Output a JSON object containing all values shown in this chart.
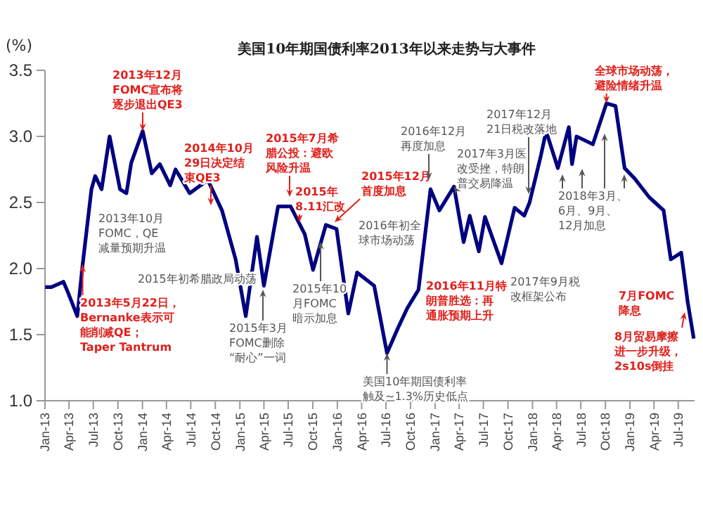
{
  "chart_data": {
    "type": "line",
    "title": "美国10年期国债利率2013年以来走势与大事件",
    "ylabel": "(%)",
    "x": [
      "2013-01-02",
      "2013-01-25",
      "2013-03-11",
      "2013-03-28",
      "2013-05-02",
      "2013-05-22",
      "2013-06-24",
      "2013-07-08",
      "2013-08-01",
      "2013-08-31",
      "2013-10-09",
      "2013-11-02",
      "2013-11-20",
      "2014-01-02",
      "2014-02-05",
      "2014-03-07",
      "2014-04-15",
      "2014-05-05",
      "2014-06-27",
      "2014-09-03",
      "2014-10-26",
      "2014-12-16",
      "2015-01-23",
      "2015-03-06",
      "2015-04-01",
      "2015-05-24",
      "2015-07-10",
      "2015-09-01",
      "2015-10-02",
      "2015-11-19",
      "2015-12-29",
      "2016-02-11",
      "2016-03-15",
      "2016-05-18",
      "2016-07-05",
      "2016-08-15",
      "2016-09-19",
      "2016-10-31",
      "2016-12-15",
      "2017-01-17",
      "2017-03-13",
      "2017-04-18",
      "2017-05-11",
      "2017-06-14",
      "2017-07-07",
      "2017-09-07",
      "2017-10-26",
      "2017-12-01",
      "2017-12-21",
      "2018-02-02",
      "2018-02-21",
      "2018-04-06",
      "2018-05-17",
      "2018-05-29",
      "2018-06-15",
      "2018-08-15",
      "2018-10-05",
      "2018-11-08",
      "2018-12-12",
      "2019-01-19",
      "2019-03-14",
      "2019-05-07",
      "2019-06-03",
      "2019-07-12",
      "2019-08-05",
      "2019-08-28"
    ],
    "series": [
      {
        "color": "#000080",
        "values": [
          1.86,
          1.86,
          1.9,
          1.82,
          1.64,
          2.03,
          2.6,
          2.7,
          2.6,
          3.0,
          2.6,
          2.57,
          2.8,
          3.04,
          2.72,
          2.79,
          2.63,
          2.75,
          2.57,
          2.67,
          2.44,
          2.07,
          1.64,
          2.24,
          1.87,
          2.47,
          2.47,
          2.26,
          1.99,
          2.33,
          2.3,
          1.66,
          1.97,
          1.87,
          1.36,
          1.55,
          1.7,
          1.84,
          2.6,
          2.44,
          2.62,
          2.2,
          2.4,
          2.13,
          2.39,
          2.04,
          2.46,
          2.4,
          2.5,
          2.86,
          3.04,
          2.76,
          3.07,
          2.79,
          3.0,
          2.94,
          3.25,
          3.23,
          2.76,
          2.68,
          2.54,
          2.44,
          2.07,
          2.12,
          1.75,
          1.47
        ]
      }
    ],
    "xlim": [
      "2013-01-01",
      "2019-08-31"
    ],
    "xticks": [
      {
        "value": "2013-01-01",
        "label": "Jan-13"
      },
      {
        "value": "2013-04-01",
        "label": "Apr-13"
      },
      {
        "value": "2013-07-01",
        "label": "Jul-13"
      },
      {
        "value": "2013-10-01",
        "label": "Oct-13"
      },
      {
        "value": "2014-01-01",
        "label": "Jan-14"
      },
      {
        "value": "2014-04-01",
        "label": "Apr-14"
      },
      {
        "value": "2014-07-01",
        "label": "Jul-14"
      },
      {
        "value": "2014-10-01",
        "label": "Oct-14"
      },
      {
        "value": "2015-01-01",
        "label": "Jan-15"
      },
      {
        "value": "2015-04-01",
        "label": "Apr-15"
      },
      {
        "value": "2015-07-01",
        "label": "Jul-15"
      },
      {
        "value": "2015-10-01",
        "label": "Oct-15"
      },
      {
        "value": "2016-01-01",
        "label": "Jan-16"
      },
      {
        "value": "2016-04-01",
        "label": "Apr-16"
      },
      {
        "value": "2016-07-01",
        "label": "Jul-16"
      },
      {
        "value": "2016-10-01",
        "label": "Oct-16"
      },
      {
        "value": "2017-01-01",
        "label": "Jan-17"
      },
      {
        "value": "2017-04-01",
        "label": "Apr-17"
      },
      {
        "value": "2017-07-01",
        "label": "Jul-17"
      },
      {
        "value": "2017-10-01",
        "label": "Oct-17"
      },
      {
        "value": "2018-01-01",
        "label": "Jan-18"
      },
      {
        "value": "2018-04-01",
        "label": "Apr-18"
      },
      {
        "value": "2018-07-01",
        "label": "Jul-18"
      },
      {
        "value": "2018-10-01",
        "label": "Oct-18"
      },
      {
        "value": "2019-01-01",
        "label": "Jan-19"
      },
      {
        "value": "2019-04-01",
        "label": "Apr-19"
      },
      {
        "value": "2019-07-01",
        "label": "Jul-19"
      }
    ],
    "ylim": [
      1.0,
      3.5
    ],
    "yticks": [
      {
        "value": 1.0,
        "label": "1.0"
      },
      {
        "value": 1.5,
        "label": "1.5"
      },
      {
        "value": 2.0,
        "label": "2.0"
      },
      {
        "value": 2.5,
        "label": "2.5"
      },
      {
        "value": 3.0,
        "label": "3.0"
      },
      {
        "value": 3.5,
        "label": "3.5"
      }
    ],
    "grid": false,
    "marker": "none",
    "line_style": "solid",
    "annotations": [
      {
        "text": "2013年12月FOMC宣布将逐步退出QE3",
        "x": "2014-01-02",
        "y": 3.04
      },
      "2014年10月29日决定结束QE3",
      "2015年7月希腊公投：避欧风险升温",
      "2015年8.11汇改",
      "2015年12月首度加息",
      "2016年12月再度加息",
      {
        "text": "2017年3月医改受挫，特朗普交易降温",
        "x": "2017-03-13",
        "y": 2.62
      },
      "2017年12月21日税改落地",
      "2018年3月、6月、9月、12月加息",
      {
        "text": "全球市场动荡，避险情绪升温",
        "x": "2018-10-05",
        "y": 3.25
      },
      "7月FOMC降息",
      "8月贸易摩擦进一步升级，2s10s倒挂",
      {
        "text": "美国10年期国债利率触及~1.3%历史低点",
        "x": "2016-07-05",
        "y": 1.36
      },
      "2016年11月特朗普胜选：再通胀预期上升",
      "2015年10月FOMC暗示加息",
      "2015年3月FOMC删除“耐心”一词",
      {
        "text": "2013年5月22日，Bernanke表示可能削减QE；Taper Tantrum",
        "x": "2013-05-22",
        "y": 2.03
      },
      "2013年10月FOMC，QE减量预期升温",
      "2015年初希腊政局动荡",
      "2016年初全球市场动荡",
      "2017年9月税改框架公布"
    ]
  }
}
